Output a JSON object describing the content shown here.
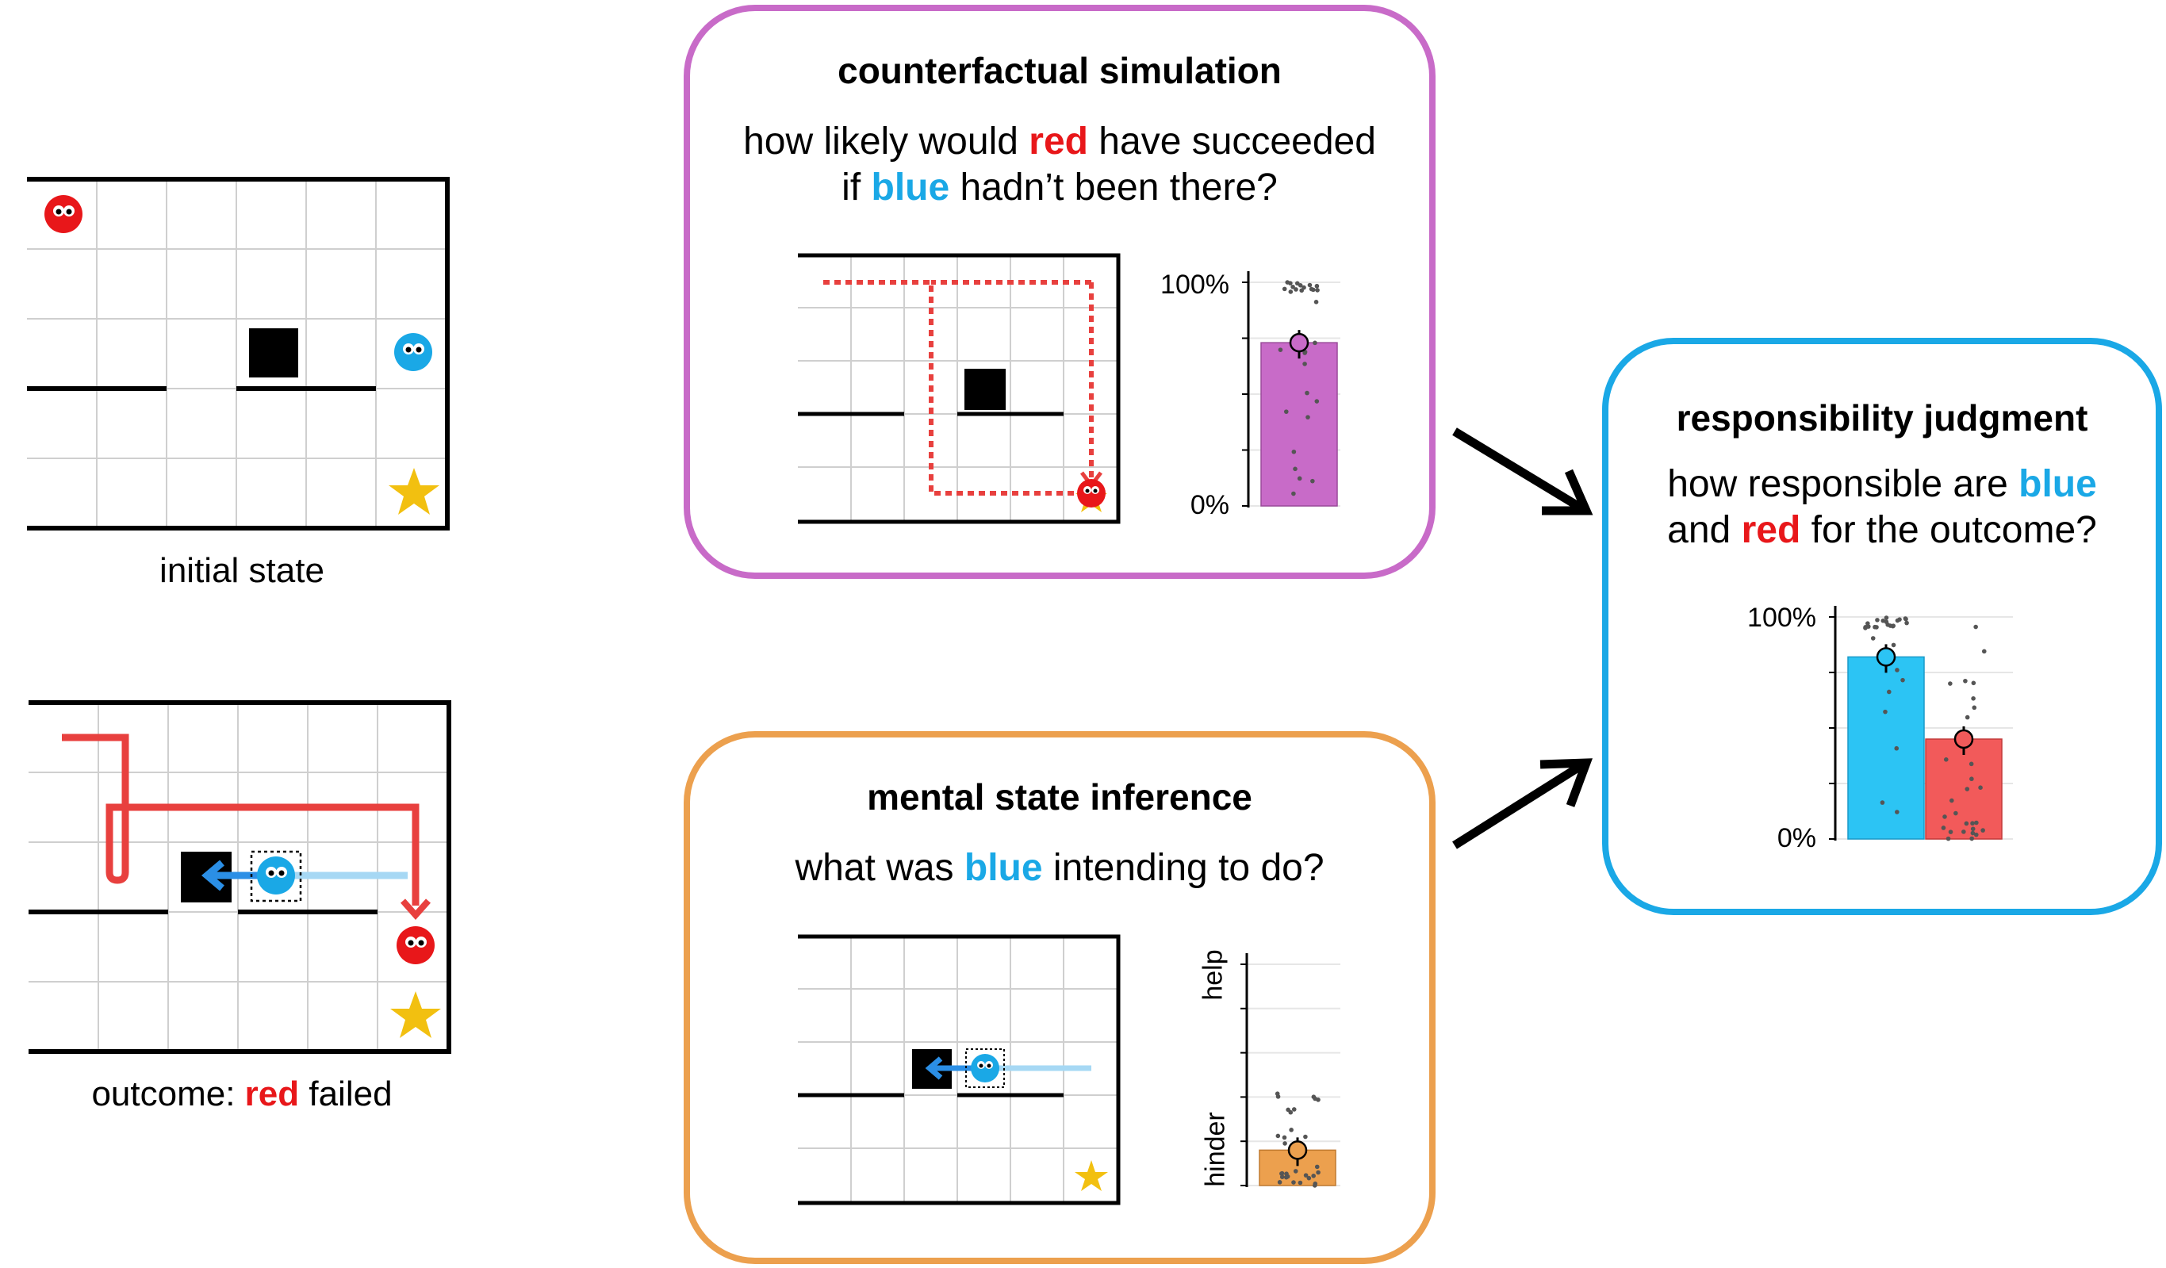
{
  "colors": {
    "red": "#e8171a",
    "blue": "#1aa8e6",
    "star": "#f2c010",
    "purple": "#c86bc8",
    "orange": "#eca04e",
    "cyan": "#1aa8e6"
  },
  "left": {
    "initial_label": "initial state",
    "outcome_prefix": "outcome: ",
    "outcome_red": "red",
    "outcome_suffix": " failed"
  },
  "counterfactual": {
    "title": "counterfactual simulation",
    "q_pre": "how likely would ",
    "q_red": "red",
    "q_mid": " have succeeded",
    "q_if": "if ",
    "q_blue": "blue",
    "q_post": " hadn’t been there?",
    "tick_top": "100%",
    "tick_bottom": "0%"
  },
  "mental": {
    "title": "mental state inference",
    "q_pre": "what was ",
    "q_blue": "blue",
    "q_post": " intending to do?",
    "axis_top": "help",
    "axis_bottom": "hinder"
  },
  "responsibility": {
    "title": "responsibility judgment",
    "q1_pre": "how responsible are ",
    "q1_blue": "blue",
    "q2_pre": "and ",
    "q2_red": "red",
    "q2_post": " for the outcome?",
    "tick_top": "100%",
    "tick_bottom": "0%"
  },
  "chart_data": [
    {
      "type": "bar",
      "categories": [
        "red success without blue"
      ],
      "values": [
        0.73
      ],
      "ylim": [
        0,
        1
      ]
    },
    {
      "type": "bar",
      "categories": [
        "blue intention"
      ],
      "values": [
        0.16
      ],
      "ylim": [
        0,
        1
      ]
    },
    {
      "type": "bar",
      "categories": [
        "blue",
        "red"
      ],
      "values": [
        0.82,
        0.45
      ],
      "ylim": [
        0,
        1
      ]
    }
  ]
}
